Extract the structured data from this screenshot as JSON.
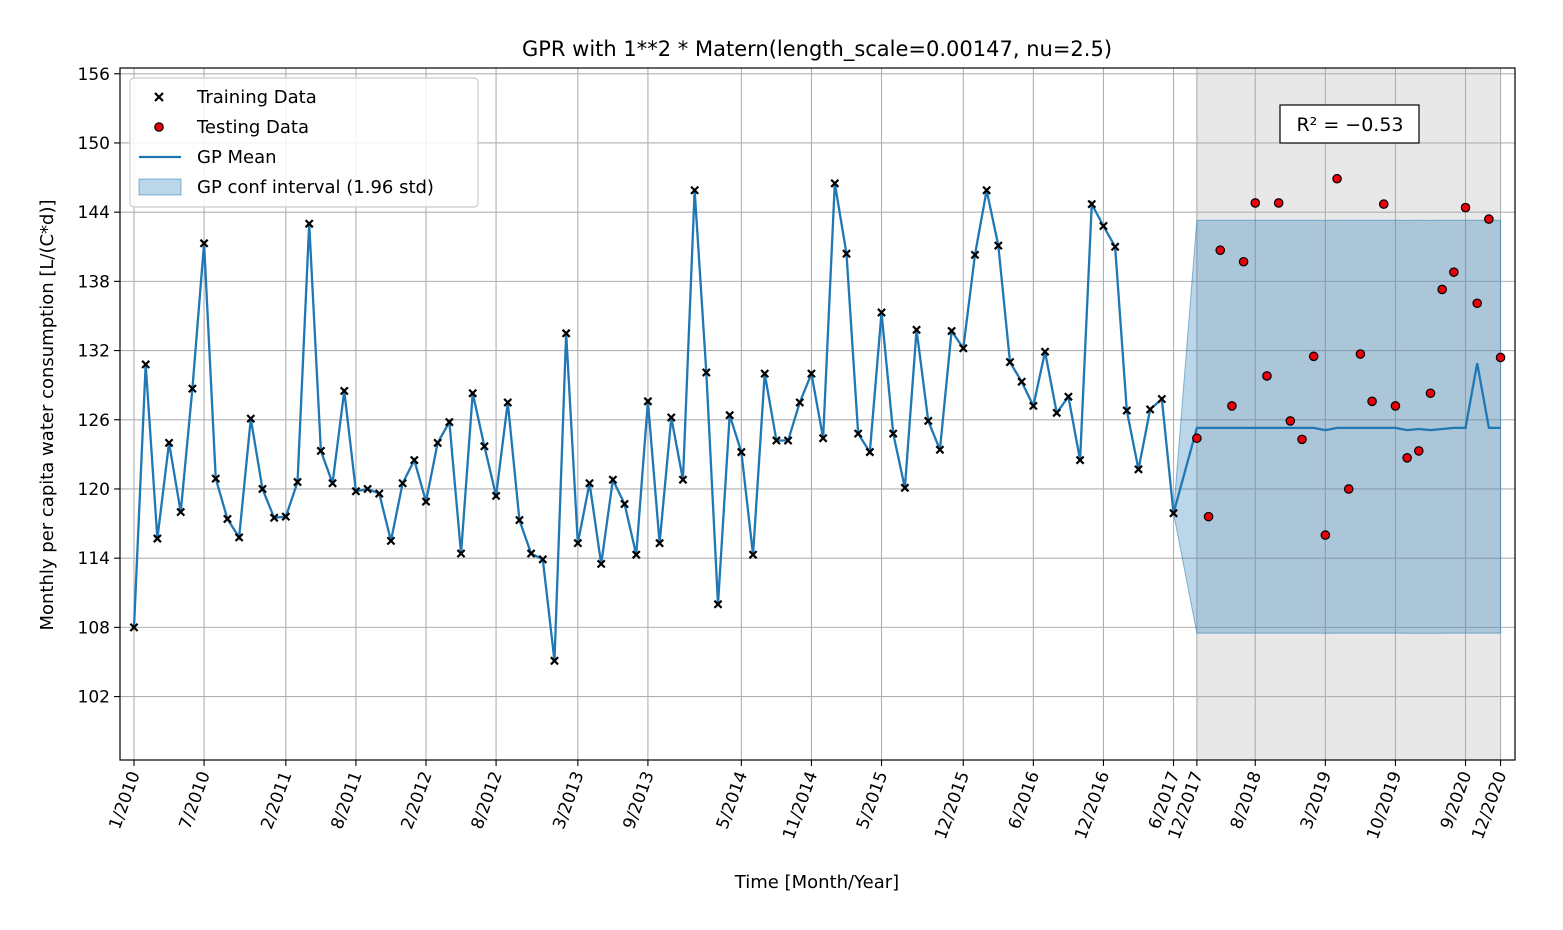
{
  "chart_data": {
    "type": "line",
    "title": "GPR with 1**2 * Matern(length_scale=0.00147, nu=2.5)",
    "xlabel": "Time [Month/Year]",
    "ylabel": "Monthly per capita water consumption [L/(C*d)]",
    "ylim": [
      96.5,
      156.5
    ],
    "yticks": [
      102,
      108,
      114,
      120,
      126,
      132,
      138,
      144,
      150,
      156
    ],
    "xtick_labels": [
      "1/2010",
      "7/2010",
      "2/2011",
      "8/2011",
      "2/2012",
      "8/2012",
      "3/2013",
      "9/2013",
      "5/2014",
      "11/2014",
      "5/2015",
      "12/2015",
      "6/2016",
      "12/2016",
      "6/2017",
      "12/2017",
      "8/2018",
      "3/2019",
      "10/2019",
      "9/2020",
      "12/2020"
    ],
    "grid": true,
    "legend_position": "upper-left",
    "annotation": "R² = −0.53",
    "test_region": {
      "start_index": 91,
      "end_index": 117
    },
    "series": [
      {
        "name": "Training Data",
        "marker": "x",
        "color": "#000000",
        "values": [
          108.0,
          130.8,
          115.7,
          124.0,
          118.0,
          128.7,
          141.3,
          120.9,
          117.4,
          115.8,
          126.1,
          120.0,
          117.5,
          117.6,
          120.6,
          143.0,
          123.3,
          120.5,
          128.5,
          119.8,
          120.0,
          119.6,
          115.5,
          120.5,
          122.5,
          118.9,
          124.0,
          125.8,
          114.4,
          128.3,
          123.7,
          119.4,
          127.5,
          117.3,
          114.4,
          113.9,
          105.1,
          133.5,
          115.3,
          120.5,
          113.5,
          120.8,
          118.7,
          114.3,
          127.6,
          115.3,
          126.2,
          120.8,
          145.9,
          130.1,
          110.0,
          126.4,
          123.2,
          114.3,
          130.0,
          124.2,
          124.2,
          127.5,
          130.0,
          124.4,
          146.5,
          140.4,
          124.8,
          123.2,
          135.3,
          124.8,
          120.1,
          133.8,
          125.9,
          123.4,
          133.7,
          132.2,
          140.3,
          145.9,
          141.1,
          131.0,
          129.3,
          127.2,
          131.9,
          126.6,
          128.0,
          122.5,
          144.7,
          142.8,
          141.0,
          126.8,
          121.7,
          126.9,
          127.8,
          117.9
        ]
      },
      {
        "name": "Testing Data",
        "marker": "o",
        "color": "#e8000b",
        "values": [
          124.4,
          117.6,
          140.7,
          127.2,
          139.7,
          144.8,
          129.8,
          144.8,
          125.9,
          124.3,
          131.5,
          116.0,
          146.9,
          120.0,
          131.7,
          127.6,
          144.7,
          127.2,
          122.7,
          123.3,
          128.3,
          137.3,
          138.8,
          144.4,
          136.1,
          143.4,
          131.4
        ]
      },
      {
        "name": "GP Mean",
        "color": "#1f77b4",
        "values_test": [
          125.3,
          125.3,
          125.3,
          125.3,
          125.3,
          125.3,
          125.3,
          125.3,
          125.3,
          125.3,
          125.3,
          125.1,
          125.3,
          125.3,
          125.3,
          125.3,
          125.3,
          125.3,
          125.1,
          125.2,
          125.1,
          125.2,
          125.3,
          125.3,
          130.9,
          125.3,
          125.3
        ]
      },
      {
        "name": "GP conf interval (1.96 std)",
        "color": "#1f77b4",
        "upper": 143.3,
        "lower": 107.5
      }
    ]
  }
}
